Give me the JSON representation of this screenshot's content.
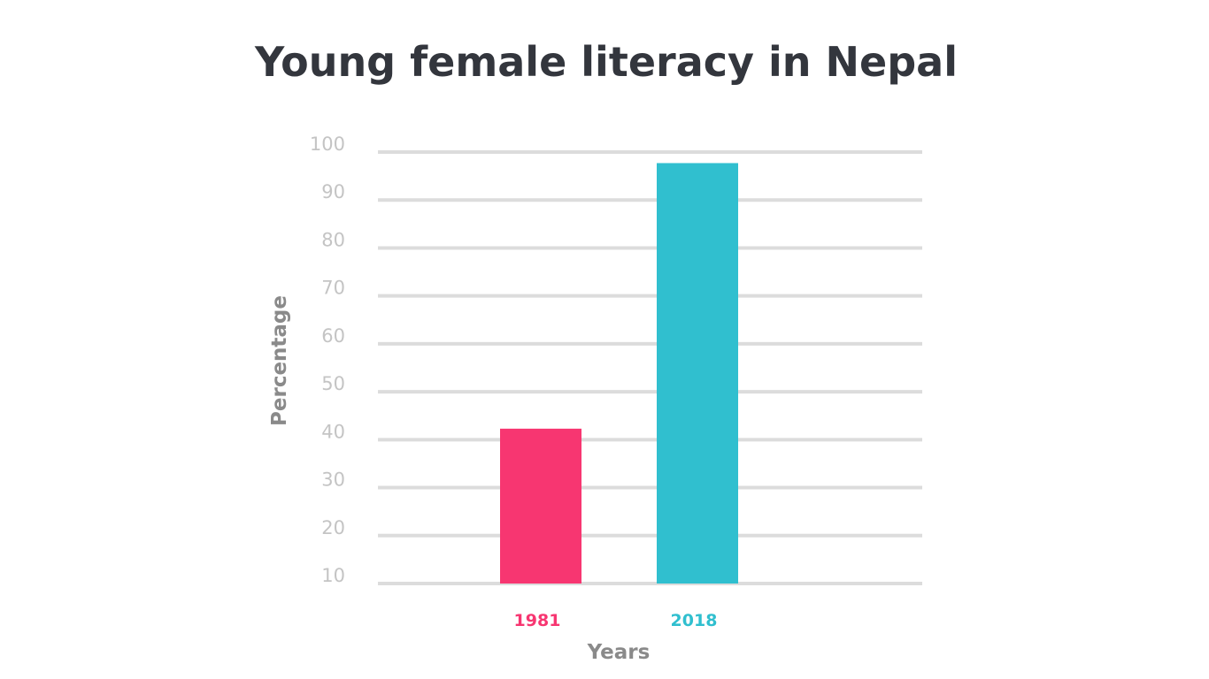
{
  "chart_data": {
    "type": "bar",
    "title": "Young female literacy in Nepal",
    "xlabel": "Years",
    "ylabel": "Percentage",
    "categories": [
      "1981",
      "2018"
    ],
    "values": [
      42.3,
      97.7
    ],
    "bar_colors": [
      "#f73671",
      "#30bfcf"
    ],
    "ylim": [
      10,
      100
    ],
    "yticks": [
      10,
      20,
      30,
      40,
      50,
      60,
      70,
      80,
      90,
      100
    ],
    "grid": true,
    "colors": {
      "title": "#33363d",
      "axis_label": "#8a8a8a",
      "tick": "#c4c4c4",
      "grid": "#dcdcdc"
    }
  }
}
